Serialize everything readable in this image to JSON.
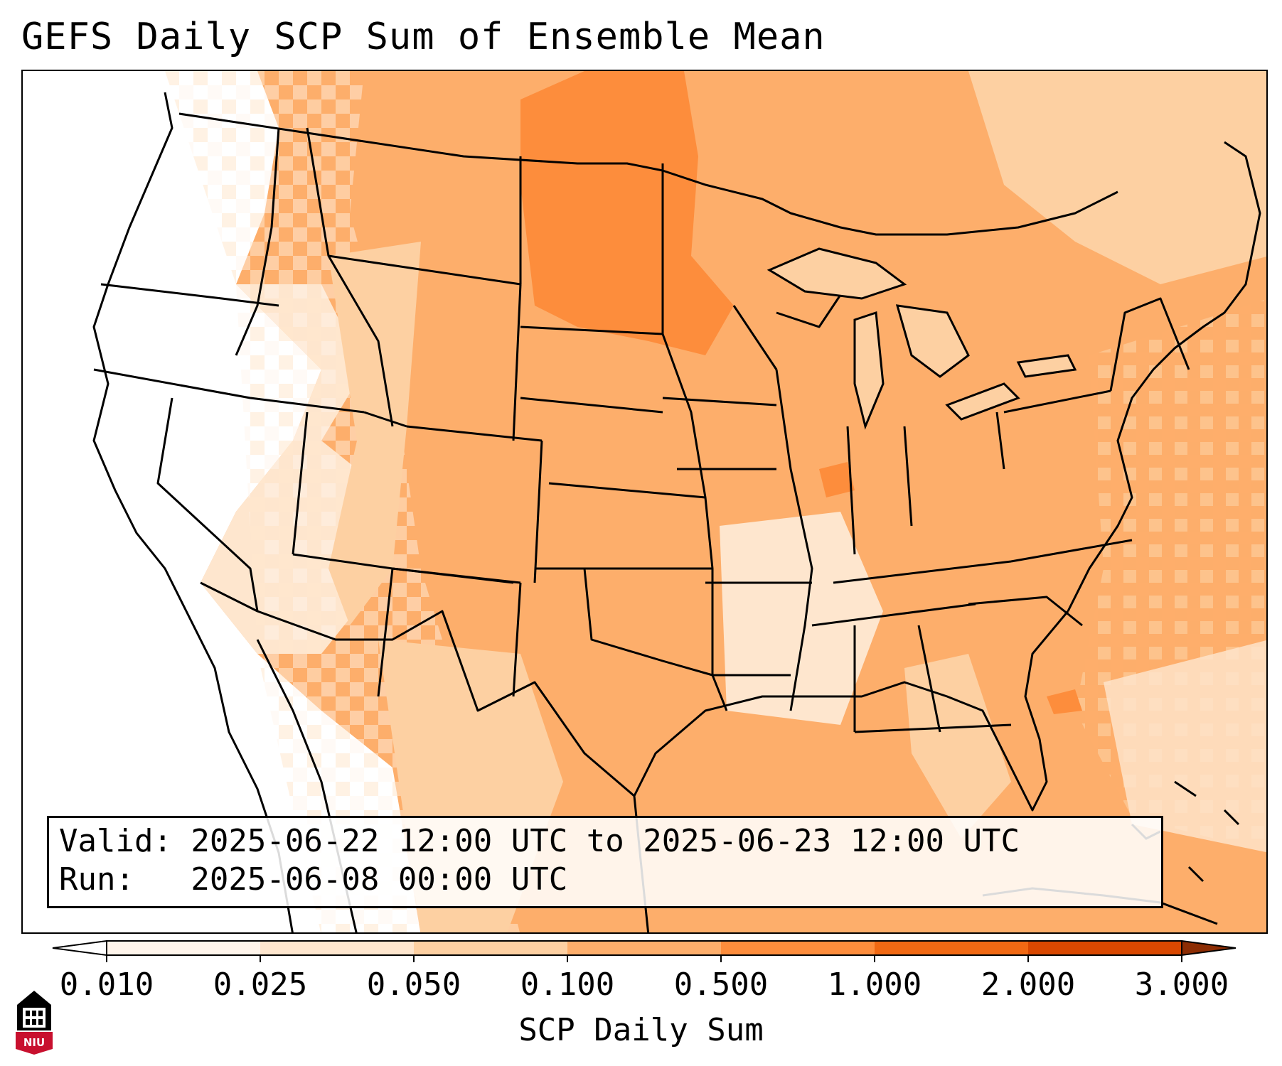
{
  "title": "GEFS Daily SCP Sum of Ensemble Mean",
  "info": {
    "valid": "Valid: 2025-06-22 12:00 UTC to 2025-06-23 12:00 UTC",
    "run": "Run:   2025-06-08 00:00 UTC"
  },
  "colorbar": {
    "label": "SCP Daily Sum",
    "ticks": [
      "0.010",
      "0.025",
      "0.050",
      "0.100",
      "0.500",
      "1.000",
      "2.000",
      "3.000"
    ],
    "colors": [
      "#fff5eb",
      "#fee6ce",
      "#fdd0a2",
      "#fdae6b",
      "#fd8d3c",
      "#f16913",
      "#d94801"
    ],
    "extend_low_color": "#ffffff",
    "extend_high_color": "#8c2d04"
  },
  "logo": {
    "text": "NIU"
  },
  "map": {
    "field": "SCP Daily Sum",
    "features": [
      "state borders",
      "country borders",
      "coastlines",
      "Great Lakes"
    ]
  }
}
